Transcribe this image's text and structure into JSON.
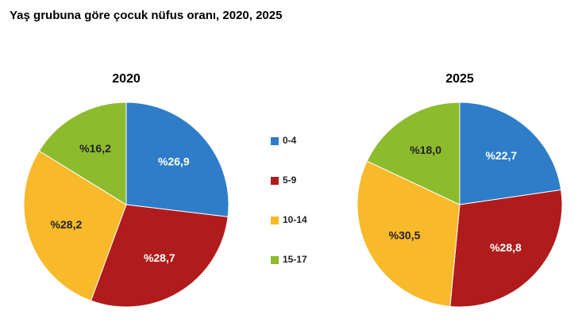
{
  "title": "Yaş grubuna göre çocuk nüfus oranı, 2020, 2025",
  "chart_data": [
    {
      "type": "pie",
      "title": "2020",
      "categories": [
        "0-4",
        "5-9",
        "10-14",
        "15-17"
      ],
      "values": [
        26.9,
        28.7,
        28.2,
        16.2
      ],
      "value_labels": [
        "%26,9",
        "%28,7",
        "%28,2",
        "%16,2"
      ],
      "colors": [
        "#2e7dc8",
        "#b01c1c",
        "#f8b92a",
        "#8dbb2e"
      ]
    },
    {
      "type": "pie",
      "title": "2025",
      "categories": [
        "0-4",
        "5-9",
        "10-14",
        "15-17"
      ],
      "values": [
        22.7,
        28.8,
        30.5,
        18.0
      ],
      "value_labels": [
        "%22,7",
        "%28,8",
        "%30,5",
        "%18,0"
      ],
      "colors": [
        "#2e7dc8",
        "#b01c1c",
        "#f8b92a",
        "#8dbb2e"
      ]
    }
  ]
}
